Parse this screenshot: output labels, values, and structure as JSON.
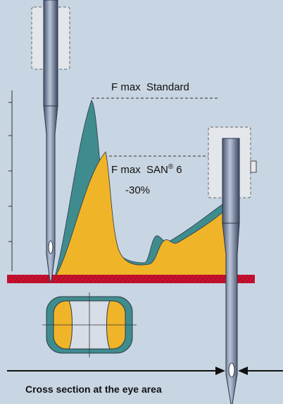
{
  "labels": {
    "standard": "F max  Standard",
    "san": "F max  SAN",
    "registered": "®",
    "san_number": "6",
    "reduction": "-30%"
  },
  "caption": "Cross section at the eye area"
}
